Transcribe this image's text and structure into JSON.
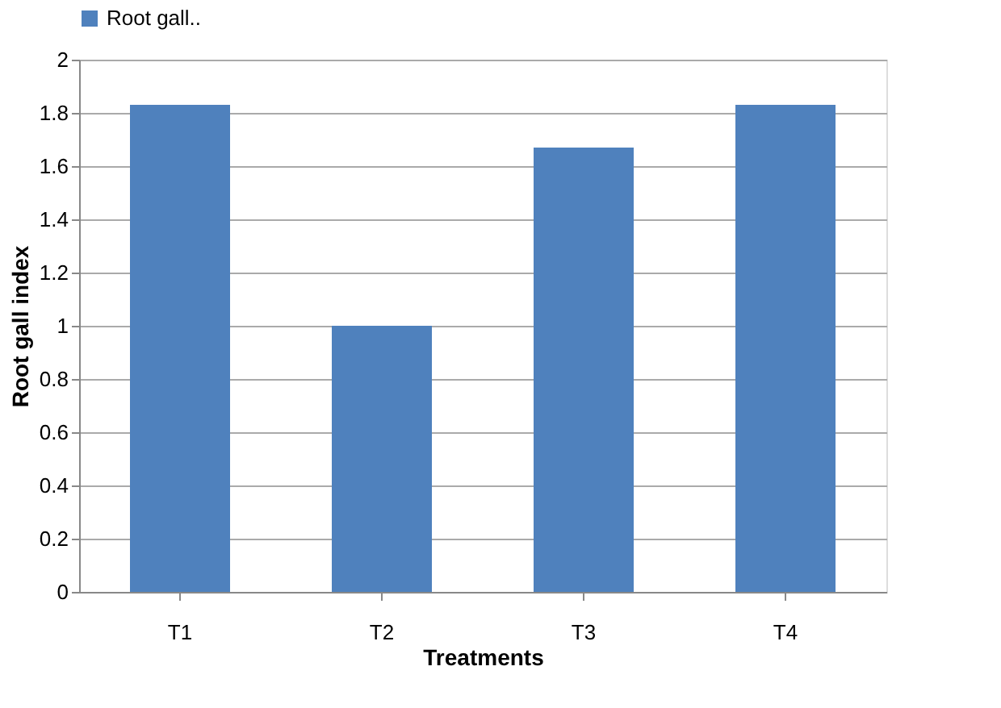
{
  "chart_data": {
    "type": "bar",
    "xlabel": "Treatments",
    "ylabel": "Root gall index",
    "categories": [
      "T1",
      "T2",
      "T3",
      "T4"
    ],
    "series": [
      {
        "name": "Root gall..",
        "color": "#4f81bd",
        "values": [
          1.83,
          1.0,
          1.67,
          1.83
        ]
      }
    ],
    "ylim": [
      0,
      2
    ],
    "yticks": [
      0,
      0.2,
      0.4,
      0.6,
      0.8,
      1,
      1.2,
      1.4,
      1.6,
      1.8,
      2
    ],
    "grid": "y",
    "legend": "top"
  }
}
